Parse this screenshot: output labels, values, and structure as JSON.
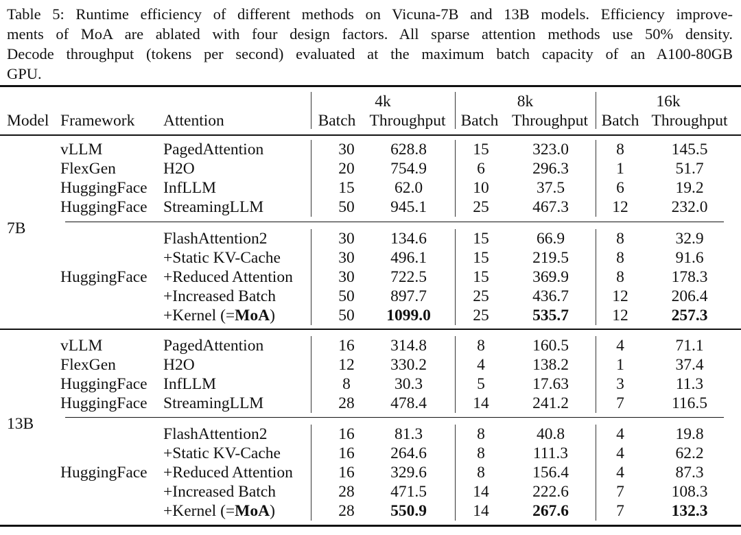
{
  "caption": {
    "lines": [
      "Table 5: Runtime efficiency of different methods on Vicuna-7B and 13B models. Efficiency improve-",
      "ments of MoA are ablated with four design factors. All sparse attention methods use 50% density.",
      "Decode throughput (tokens per second) evaluated at the maximum batch capacity of an A100-80GB",
      "GPU."
    ]
  },
  "table": {
    "header": {
      "model": "Model",
      "framework": "Framework",
      "attention": "Attention",
      "contexts": [
        "4k",
        "8k",
        "16k"
      ],
      "sub": [
        "Batch",
        "Throughput",
        "Batch",
        "Throughput",
        "Batch",
        "Throughput"
      ]
    },
    "groups": [
      {
        "model": "7B",
        "sections": [
          [
            {
              "framework": "vLLM",
              "attention": [
                "PagedAttention",
                "",
                ""
              ],
              "values": [
                "30",
                "628.8",
                "15",
                "323.0",
                "8",
                "145.5"
              ],
              "bold": false
            },
            {
              "framework": "FlexGen",
              "attention": [
                "H2O",
                "",
                ""
              ],
              "values": [
                "20",
                "754.9",
                "6",
                "296.3",
                "1",
                "51.7"
              ],
              "bold": false
            },
            {
              "framework": "HuggingFace",
              "attention": [
                "InfLLM",
                "",
                ""
              ],
              "values": [
                "15",
                "62.0",
                "10",
                "37.5",
                "6",
                "19.2"
              ],
              "bold": false
            },
            {
              "framework": "HuggingFace",
              "attention": [
                "StreamingLLM",
                "",
                ""
              ],
              "values": [
                "50",
                "945.1",
                "25",
                "467.3",
                "12",
                "232.0"
              ],
              "bold": false
            }
          ],
          [
            {
              "framework": "",
              "attention": [
                "FlashAttention2",
                "",
                ""
              ],
              "values": [
                "30",
                "134.6",
                "15",
                "66.9",
                "8",
                "32.9"
              ],
              "bold": false
            },
            {
              "framework": "",
              "attention": [
                "+Static KV-Cache",
                "",
                ""
              ],
              "values": [
                "30",
                "496.1",
                "15",
                "219.5",
                "8",
                "91.6"
              ],
              "bold": false
            },
            {
              "framework": "HuggingFace",
              "attention": [
                "+Reduced Attention",
                "",
                ""
              ],
              "values": [
                "30",
                "722.5",
                "15",
                "369.9",
                "8",
                "178.3"
              ],
              "bold": false
            },
            {
              "framework": "",
              "attention": [
                "+Increased Batch",
                "",
                ""
              ],
              "values": [
                "50",
                "897.7",
                "25",
                "436.7",
                "12",
                "206.4"
              ],
              "bold": false
            },
            {
              "framework": "",
              "attention": [
                "+Kernel (=",
                "MoA",
                ")"
              ],
              "values": [
                "50",
                "1099.0",
                "25",
                "535.7",
                "12",
                "257.3"
              ],
              "bold": true
            }
          ]
        ]
      },
      {
        "model": "13B",
        "sections": [
          [
            {
              "framework": "vLLM",
              "attention": [
                "PagedAttention",
                "",
                ""
              ],
              "values": [
                "16",
                "314.8",
                "8",
                "160.5",
                "4",
                "71.1"
              ],
              "bold": false
            },
            {
              "framework": "FlexGen",
              "attention": [
                "H2O",
                "",
                ""
              ],
              "values": [
                "12",
                "330.2",
                "4",
                "138.2",
                "1",
                "37.4"
              ],
              "bold": false
            },
            {
              "framework": "HuggingFace",
              "attention": [
                "InfLLM",
                "",
                ""
              ],
              "values": [
                "8",
                "30.3",
                "5",
                "17.63",
                "3",
                "11.3"
              ],
              "bold": false
            },
            {
              "framework": "HuggingFace",
              "attention": [
                "StreamingLLM",
                "",
                ""
              ],
              "values": [
                "28",
                "478.4",
                "14",
                "241.2",
                "7",
                "116.5"
              ],
              "bold": false
            }
          ],
          [
            {
              "framework": "",
              "attention": [
                "FlashAttention2",
                "",
                ""
              ],
              "values": [
                "16",
                "81.3",
                "8",
                "40.8",
                "4",
                "19.8"
              ],
              "bold": false
            },
            {
              "framework": "",
              "attention": [
                "+Static KV-Cache",
                "",
                ""
              ],
              "values": [
                "16",
                "264.6",
                "8",
                "111.3",
                "4",
                "62.2"
              ],
              "bold": false
            },
            {
              "framework": "HuggingFace",
              "attention": [
                "+Reduced Attention",
                "",
                ""
              ],
              "values": [
                "16",
                "329.6",
                "8",
                "156.4",
                "4",
                "87.3"
              ],
              "bold": false
            },
            {
              "framework": "",
              "attention": [
                "+Increased Batch",
                "",
                ""
              ],
              "values": [
                "28",
                "471.5",
                "14",
                "222.6",
                "7",
                "108.3"
              ],
              "bold": false
            },
            {
              "framework": "",
              "attention": [
                "+Kernel (=",
                "MoA",
                ")"
              ],
              "values": [
                "28",
                "550.9",
                "14",
                "267.6",
                "7",
                "132.3"
              ],
              "bold": true
            }
          ]
        ]
      }
    ]
  }
}
